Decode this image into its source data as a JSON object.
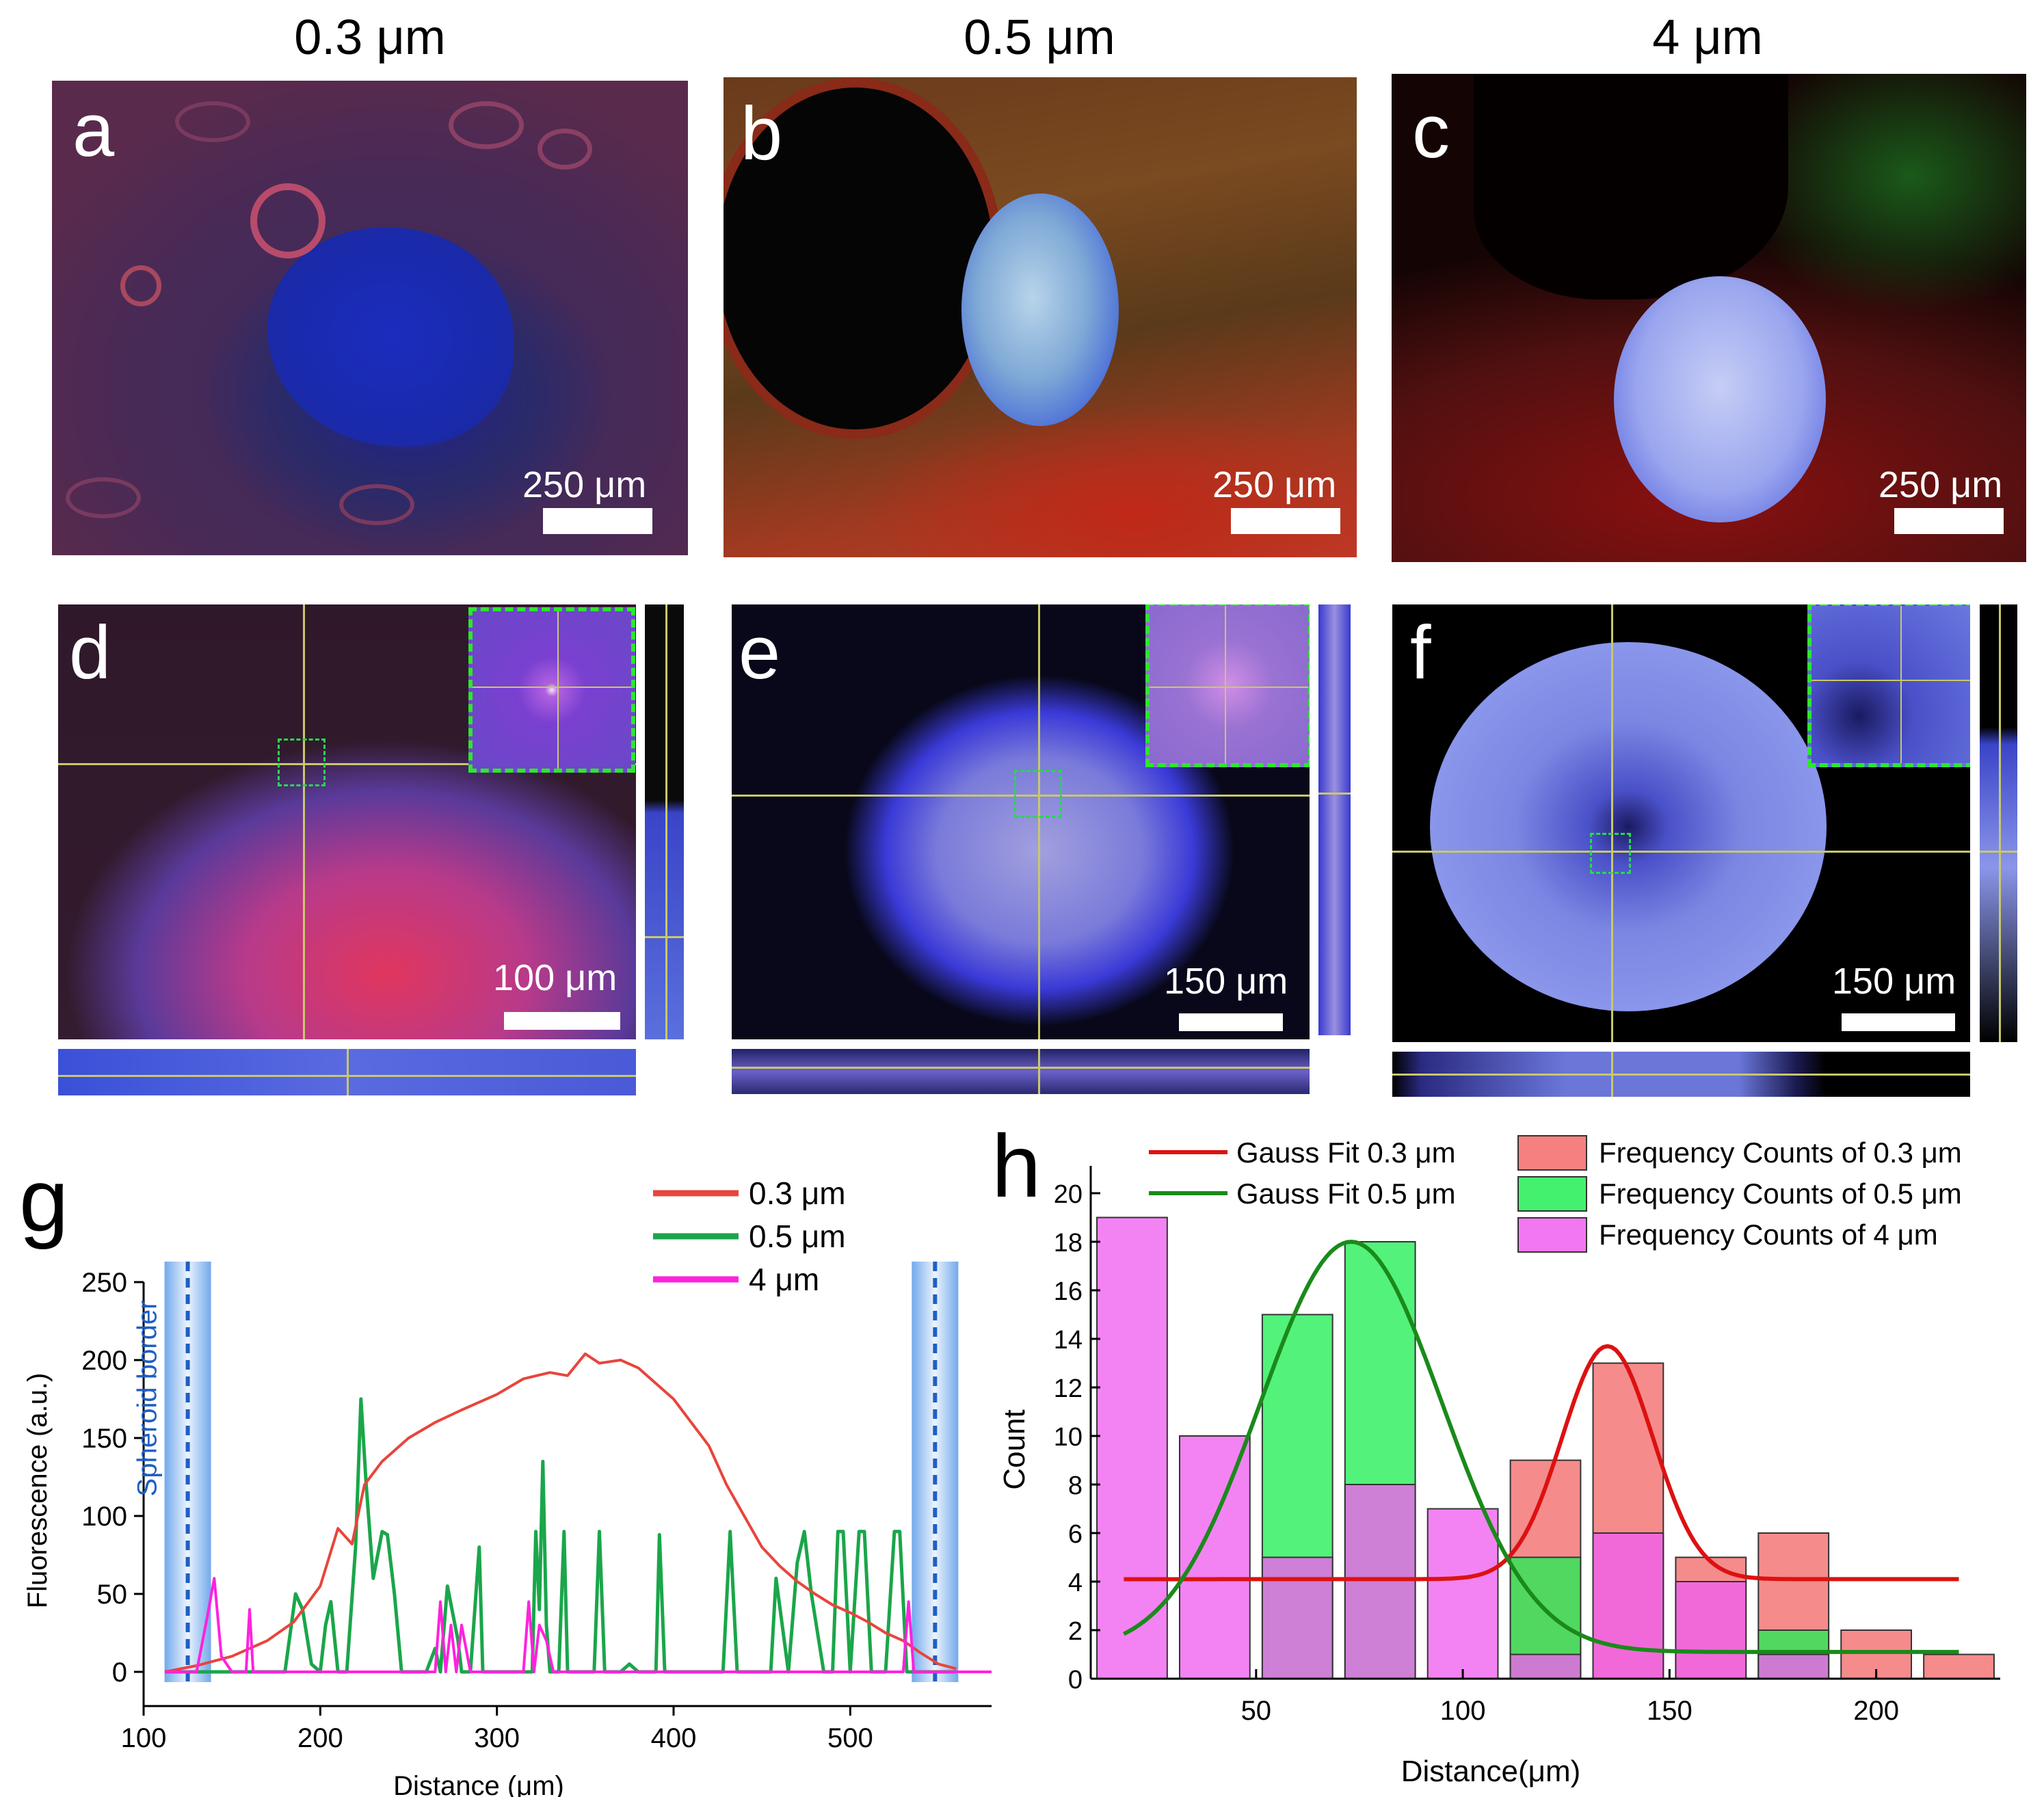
{
  "column_titles": [
    "0.3 μm",
    "0.5 μm",
    "4 μm"
  ],
  "panels": [
    {
      "label": "a",
      "scale_bar": "250 μm"
    },
    {
      "label": "b",
      "scale_bar": "250 μm"
    },
    {
      "label": "c",
      "scale_bar": "250 μm"
    },
    {
      "label": "d",
      "scale_bar": "100 μm"
    },
    {
      "label": "e",
      "scale_bar": "150 μm"
    },
    {
      "label": "f",
      "scale_bar": "150 μm"
    }
  ],
  "colors": {
    "red_series": "#e8453c",
    "green_series": "#1aa64a",
    "magenta_series": "#ff22dd",
    "border_blue": "#1f5fc4",
    "hist_red": "#f46a6a",
    "hist_green": "#22ee55",
    "hist_magenta": "#f060f0",
    "fit_red": "#dd1111",
    "fit_green": "#1a8a1a"
  },
  "chart_data": [
    {
      "label": "g",
      "type": "line",
      "xlabel": "Distance (μm)",
      "ylabel": "Fluorescence (a.u.)",
      "xlim": [
        100,
        580
      ],
      "ylim": [
        0,
        250
      ],
      "xticks": [
        100,
        200,
        300,
        400,
        500
      ],
      "yticks": [
        0,
        50,
        100,
        150,
        200,
        250
      ],
      "annotation": "Spheroid border",
      "spheroid_borders": [
        125,
        548
      ],
      "legend": [
        "0.3 μm",
        "0.5 μm",
        "4 μm"
      ],
      "series": [
        {
          "name": "0.3 μm",
          "color": "#e8453c",
          "x": [
            112,
            130,
            150,
            170,
            185,
            200,
            210,
            218,
            225,
            235,
            250,
            265,
            280,
            300,
            315,
            330,
            340,
            350,
            358,
            370,
            380,
            390,
            400,
            410,
            420,
            430,
            440,
            450,
            460,
            470,
            480,
            490,
            500,
            510,
            520,
            530,
            540,
            550,
            560
          ],
          "y": [
            0,
            4,
            10,
            20,
            32,
            55,
            92,
            82,
            120,
            135,
            150,
            160,
            168,
            178,
            188,
            192,
            190,
            204,
            198,
            200,
            195,
            185,
            175,
            160,
            145,
            120,
            100,
            80,
            68,
            58,
            50,
            43,
            38,
            32,
            25,
            20,
            12,
            5,
            2
          ]
        },
        {
          "name": "0.5 μm",
          "color": "#1aa64a",
          "x": [
            112,
            180,
            186,
            190,
            195,
            200,
            203,
            206,
            210,
            215,
            220,
            223,
            226,
            230,
            235,
            238,
            242,
            246,
            260,
            265,
            268,
            272,
            278,
            280,
            285,
            290,
            292,
            295,
            310,
            320,
            322,
            324,
            326,
            328,
            330,
            335,
            338,
            340,
            345,
            355,
            358,
            361,
            370,
            375,
            380,
            390,
            392,
            395,
            410,
            428,
            432,
            436,
            450,
            455,
            458,
            465,
            470,
            474,
            478,
            485,
            490,
            493,
            496,
            500,
            505,
            508,
            512,
            520,
            525,
            528,
            532,
            540,
            550,
            560
          ],
          "y": [
            0,
            0,
            50,
            40,
            5,
            0,
            30,
            45,
            0,
            0,
            80,
            175,
            120,
            60,
            90,
            88,
            50,
            0,
            0,
            15,
            0,
            55,
            20,
            0,
            0,
            80,
            0,
            0,
            0,
            0,
            90,
            40,
            135,
            30,
            0,
            0,
            90,
            0,
            0,
            0,
            90,
            0,
            0,
            5,
            0,
            0,
            88,
            0,
            0,
            0,
            90,
            0,
            0,
            0,
            60,
            0,
            70,
            90,
            50,
            0,
            0,
            90,
            90,
            0,
            90,
            90,
            0,
            0,
            90,
            90,
            0,
            0,
            0,
            0
          ]
        },
        {
          "name": "4 μm",
          "color": "#ff22dd",
          "x": [
            112,
            130,
            136,
            140,
            144,
            150,
            158,
            160,
            162,
            170,
            265,
            268,
            271,
            274,
            277,
            280,
            285,
            315,
            318,
            321,
            324,
            328,
            332,
            530,
            533,
            536,
            540,
            580
          ],
          "y": [
            0,
            0,
            35,
            60,
            10,
            0,
            0,
            40,
            0,
            0,
            0,
            45,
            0,
            30,
            0,
            30,
            0,
            0,
            45,
            0,
            30,
            20,
            0,
            0,
            45,
            0,
            0,
            0
          ]
        }
      ]
    },
    {
      "label": "h",
      "type": "bar",
      "xlabel": "Distance(μm)",
      "ylabel": "Count",
      "xlim": [
        10,
        230
      ],
      "ylim": [
        0,
        20
      ],
      "xticks": [
        50,
        100,
        150,
        200
      ],
      "yticks": [
        0,
        2,
        4,
        6,
        8,
        10,
        12,
        14,
        16,
        18,
        20
      ],
      "bin_width": 20,
      "legend": [
        "Gauss Fit 0.3 μm",
        "Gauss Fit 0.5 μm",
        "Frequency Counts of 0.3 μm",
        "Frequency Counts of 0.5 μm",
        "Frequency Counts of 4 μm"
      ],
      "bin_centers": [
        20,
        40,
        60,
        80,
        100,
        120,
        140,
        160,
        180,
        200,
        220
      ],
      "series": [
        {
          "name": "Frequency Counts of 0.3 μm",
          "color": "#f46a6a",
          "values": [
            0,
            0,
            0,
            0,
            0,
            9,
            13,
            5,
            6,
            2,
            1
          ]
        },
        {
          "name": "Frequency Counts of 0.5 μm",
          "color": "#22ee55",
          "values": [
            0,
            0,
            15,
            18,
            0,
            5,
            0,
            0,
            2,
            0,
            0
          ]
        },
        {
          "name": "Frequency Counts of 4 μm",
          "color": "#f060f0",
          "values": [
            19,
            10,
            5,
            8,
            7,
            1,
            6,
            4,
            1,
            0,
            0
          ]
        }
      ],
      "fits": [
        {
          "name": "Gauss Fit 0.3 μm",
          "color": "#dd1111",
          "baseline": 4.1,
          "amplitude": 9.6,
          "center": 135,
          "sigma": 11,
          "x_range": [
            18,
            220
          ]
        },
        {
          "name": "Gauss Fit 0.5 μm",
          "color": "#1a8a1a",
          "baseline": 1.1,
          "amplitude": 16.9,
          "center": 73,
          "sigma": 22,
          "x_range": [
            18,
            220
          ]
        }
      ]
    }
  ]
}
